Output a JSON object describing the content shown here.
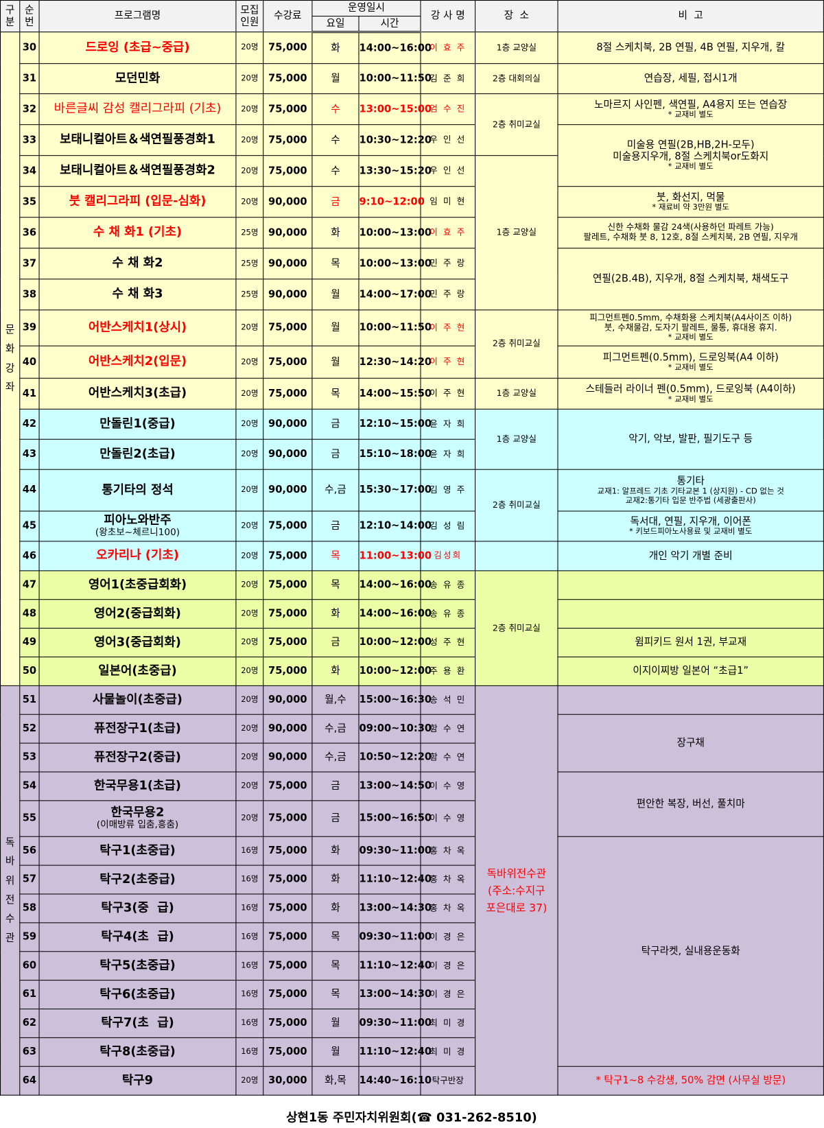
{
  "header": {
    "category": "구\n분",
    "number": "순\n번",
    "program": "프로그램명",
    "capacity": "모집\n인원",
    "fee": "수강료",
    "schedule": "운영일시",
    "day": "요일",
    "time": "시간",
    "instructor": "강 사 명",
    "location": "장  소",
    "note": "비  고"
  },
  "categories": [
    {
      "label": "문\n화\n강\n좌",
      "span": 21,
      "color": "#ffffcc"
    },
    {
      "label": "독\n바\n위\n전\n수\n관",
      "span": 14,
      "color": "#ccc0da"
    }
  ],
  "colors": {
    "yellow": "#ffffcc",
    "cyan": "#ccffff",
    "lime": "#ebfda5",
    "purple": "#ccc0da",
    "red": "#ff0000",
    "header": "#f2f2f2"
  },
  "rows": [
    {
      "no": "30",
      "name": "드로잉 (초급~중급)",
      "red_name": true,
      "cap": "20명",
      "fee": "75,000",
      "day": "화",
      "time": "14:00~16:00",
      "inst": "이 효 주",
      "red_inst": true,
      "loc": "1층 교양실",
      "loc_span": 1,
      "note": "8절 스케치북, 2B 연필, 4B 연필, 지우개, 칼",
      "note_span": 1,
      "bg": "y"
    },
    {
      "no": "31",
      "name": "모던민화",
      "cap": "20명",
      "fee": "75,000",
      "day": "월",
      "time": "10:00~11:50",
      "inst": "김 준 희",
      "loc": "2층 대회의실",
      "loc_span": 1,
      "note": "연습장, 세필, 접시1개",
      "note_span": 1,
      "bg": "y"
    },
    {
      "no": "32",
      "name": "바른글씨 감성 캘리그라피 (기초)",
      "red_name": true,
      "light": true,
      "cap": "20명",
      "fee": "75,000",
      "day": "수",
      "red_time": true,
      "time": "13:00~15:00",
      "inst": "엄 수 진",
      "red_inst": true,
      "loc": "2층 취미교실",
      "loc_span": 2,
      "note": "노마르지 사인펜, 색연필, A4용지 또는 연습장",
      "note_sub": "* 교재비 별도",
      "note_span": 1,
      "bg": "y"
    },
    {
      "no": "33",
      "name": "보태니컬아트＆색연필풍경화1",
      "cap": "20명",
      "fee": "75,000",
      "day": "수",
      "time": "10:30~12:20",
      "inst": "우 인 선",
      "note": "미술용 연필(2B,HB,2H-모두)\n미술용지우개, 8절 스케치북or도화지",
      "note_sub": "* 교재비 별도",
      "note_span": 2,
      "bg": "y"
    },
    {
      "no": "34",
      "name": "보태니컬아트＆색연필풍경화2",
      "cap": "20명",
      "fee": "75,000",
      "day": "수",
      "time": "13:30~15:20",
      "inst": "우 인 선",
      "loc": "1층 교양실",
      "loc_span": 5,
      "bg": "y"
    },
    {
      "no": "35",
      "name": "붓 캘리그라피 (입문-심화)",
      "red_name": true,
      "cap": "20명",
      "fee": "90,000",
      "day": "금",
      "time": "9:10~12:00",
      "red_time": true,
      "inst": "임 미 현",
      "note": "붓, 화선지, 먹물",
      "note_sub": "* 재료비 약 3만원 별도",
      "note_span": 1,
      "bg": "y"
    },
    {
      "no": "36",
      "name": "수 채 화1 (기초)",
      "red_name": true,
      "cap": "25명",
      "fee": "90,000",
      "day": "화",
      "time": "10:00~13:00",
      "inst": "이 효 주",
      "red_inst": true,
      "note": "신한 수채화 물감 24색(사용하던 파레트 가능)\n팔레트, 수채화 붓 8, 12호, 8절 스케치북, 2B 연필, 지우개",
      "small_note": true,
      "note_span": 1,
      "bg": "y"
    },
    {
      "no": "37",
      "name": "수 채 화2",
      "cap": "25명",
      "fee": "90,000",
      "day": "목",
      "time": "10:00~13:00",
      "inst": "민 주 랑",
      "note": "연필(2B.4B), 지우개, 8절 스케치북, 채색도구",
      "note_span": 2,
      "bg": "y"
    },
    {
      "no": "38",
      "name": "수 채 화3",
      "cap": "25명",
      "fee": "90,000",
      "day": "월",
      "time": "14:00~17:00",
      "inst": "민 주 랑",
      "bg": "y"
    },
    {
      "no": "39",
      "name": "어반스케치1(상시)",
      "red_name": true,
      "cap": "20명",
      "fee": "75,000",
      "day": "월",
      "time": "10:00~11:50",
      "inst": "이 주 현",
      "red_inst": true,
      "loc": "2층 취미교실",
      "loc_span": 2,
      "note": "피그먼트펜0.5mm, 수채화용 스케치북(A4사이즈 이하)\n붓, 수채물감, 도자기 팔레트, 물통, 휴대용 휴지.",
      "note_sub": "* 교재비 별도",
      "small_note": true,
      "note_span": 1,
      "bg": "y"
    },
    {
      "no": "40",
      "name": "어반스케치2(입문)",
      "red_name": true,
      "cap": "20명",
      "fee": "75,000",
      "day": "월",
      "time": "12:30~14:20",
      "inst": "이 주 현",
      "red_inst": true,
      "note": "피그먼트펜(0.5mm), 드로잉북(A4 이하)",
      "note_sub": "* 교재비 별도",
      "note_span": 1,
      "bg": "y"
    },
    {
      "no": "41",
      "name": "어반스케치3(초급)",
      "cap": "20명",
      "fee": "75,000",
      "day": "목",
      "time": "14:00~15:50",
      "inst": "이 주 현",
      "loc": "1층 교양실",
      "loc_span": 1,
      "note": "스테들러 라이너 펜(0.5mm), 드로잉북 (A4이하)",
      "note_sub": "* 교재비 별도",
      "note_span": 1,
      "bg": "y"
    },
    {
      "no": "42",
      "name": "만돌린1(중급)",
      "cap": "20명",
      "fee": "90,000",
      "day": "금",
      "time": "12:10~15:00",
      "inst": "윤 자 희",
      "loc": "1층 교양실",
      "loc_span": 2,
      "note": "악기, 악보, 발판, 필기도구 등",
      "note_span": 2,
      "bg": "c"
    },
    {
      "no": "43",
      "name": "만돌린2(초급)",
      "cap": "20명",
      "fee": "90,000",
      "day": "금",
      "time": "15:10~18:00",
      "inst": "윤 자 희",
      "bg": "c"
    },
    {
      "no": "44",
      "name": "통기타의 정석",
      "cap": "20명",
      "fee": "90,000",
      "day": "수,금",
      "time": "15:30~17:00",
      "inst": "김 영 주",
      "loc": "2층 취미교실",
      "loc_span": 2,
      "note": "통기타",
      "note_sub": "교재1: 알프레드 기초 기타교본 1 (상지원) - CD 없는 것\n교재2:통기타 입문 반주법 (세광출판사)",
      "note_span": 1,
      "bg": "c"
    },
    {
      "no": "45",
      "name": "피아노와반주",
      "name_sub": "(왕초보~체르니100)",
      "cap": "20명",
      "fee": "75,000",
      "day": "금",
      "time": "12:10~14:00",
      "inst": "김 성 림",
      "note": "독서대, 연필, 지우개, 이어폰",
      "note_sub": "* 키보드피아노사용료 및 교재비 별도",
      "note_span": 1,
      "bg": "c"
    },
    {
      "no": "46",
      "name": "오카리나 (기초)",
      "red_name": true,
      "cap": "20명",
      "fee": "75,000",
      "day": "목",
      "red_time": true,
      "time": "11:00~13:00",
      "inst": "김성희",
      "red_inst": true,
      "loc": "",
      "loc_span": 1,
      "note": "개인 악기 개별 준비",
      "note_span": 1,
      "bg": "c"
    },
    {
      "no": "47",
      "name": "영어1(초중급회화)",
      "cap": "20명",
      "fee": "75,000",
      "day": "목",
      "time": "14:00~16:00",
      "inst": "송 유 종",
      "loc": "2층 취미교실",
      "loc_span": 4,
      "note": "",
      "note_span": 1,
      "bg": "g"
    },
    {
      "no": "48",
      "name": "영어2(중급회화)",
      "cap": "20명",
      "fee": "75,000",
      "day": "화",
      "time": "14:00~16:00",
      "inst": "송 유 종",
      "note": "",
      "note_span": 1,
      "bg": "g"
    },
    {
      "no": "49",
      "name": "영어3(중급회화)",
      "cap": "20명",
      "fee": "75,000",
      "day": "금",
      "time": "10:00~12:00",
      "inst": "성 주 현",
      "note": "윔피키드 원서 1권, 부교재",
      "note_span": 1,
      "bg": "g"
    },
    {
      "no": "50",
      "name": "일본어(초중급)",
      "cap": "20명",
      "fee": "75,000",
      "day": "화",
      "time": "10:00~12:00",
      "inst": "주 용 환",
      "note": "이지이찌방 일본어  “초급1”",
      "note_span": 1,
      "bg": "g"
    },
    {
      "no": "51",
      "name": "사물놀이(초중급)",
      "cap": "20명",
      "fee": "90,000",
      "day": "월,수",
      "time": "15:00~16:30",
      "inst": "송 석 민",
      "loc": "독바위전수관\n(주소:수지구\n포은대로 37)",
      "red_loc": true,
      "loc_span": 14,
      "note": "",
      "note_span": 1,
      "bg": "p"
    },
    {
      "no": "52",
      "name": "퓨전장구1(초급)",
      "cap": "20명",
      "fee": "90,000",
      "day": "수,금",
      "time": "09:00~10:30",
      "inst": "함 수 연",
      "note": "장구채",
      "note_span": 2,
      "bg": "p"
    },
    {
      "no": "53",
      "name": "퓨전장구2(중급)",
      "cap": "20명",
      "fee": "90,000",
      "day": "수,금",
      "time": "10:50~12:20",
      "inst": "함 수 연",
      "bg": "p"
    },
    {
      "no": "54",
      "name": "한국무용1(초급)",
      "cap": "20명",
      "fee": "75,000",
      "day": "금",
      "time": "13:00~14:50",
      "inst": "이 수 영",
      "note": "편안한 복장, 버선, 풀치마",
      "note_span": 2,
      "bg": "p"
    },
    {
      "no": "55",
      "name": "한국무용2",
      "name_sub": "(이매방류 입춤,흥춤)",
      "cap": "20명",
      "fee": "75,000",
      "day": "금",
      "time": "15:00~16:50",
      "inst": "이 수 영",
      "bg": "p"
    },
    {
      "no": "56",
      "name": "탁구1(초중급)",
      "cap": "16명",
      "fee": "75,000",
      "day": "화",
      "time": "09:30~11:00",
      "inst": "홍 차 옥",
      "note": "탁구라켓, 실내용운동화",
      "note_span": 8,
      "bg": "p"
    },
    {
      "no": "57",
      "name": "탁구2(초중급)",
      "cap": "16명",
      "fee": "75,000",
      "day": "화",
      "time": "11:10~12:40",
      "inst": "홍 차 옥",
      "bg": "p"
    },
    {
      "no": "58",
      "name": "탁구3(중  급)",
      "cap": "16명",
      "fee": "75,000",
      "day": "화",
      "time": "13:00~14:30",
      "inst": "홍 차 옥",
      "bg": "p"
    },
    {
      "no": "59",
      "name": "탁구4(초  급)",
      "cap": "16명",
      "fee": "75,000",
      "day": "목",
      "time": "09:30~11:00",
      "inst": "이 경 은",
      "bg": "p"
    },
    {
      "no": "60",
      "name": "탁구5(초중급)",
      "cap": "16명",
      "fee": "75,000",
      "day": "목",
      "time": "11:10~12:40",
      "inst": "이 경 은",
      "bg": "p"
    },
    {
      "no": "61",
      "name": "탁구6(초중급)",
      "cap": "16명",
      "fee": "75,000",
      "day": "목",
      "time": "13:00~14:30",
      "inst": "이 경 은",
      "bg": "p"
    },
    {
      "no": "62",
      "name": "탁구7(초  급)",
      "cap": "16명",
      "fee": "75,000",
      "day": "월",
      "time": "09:30~11:00",
      "inst": "최 미 경",
      "bg": "p"
    },
    {
      "no": "63",
      "name": "탁구8(초중급)",
      "cap": "16명",
      "fee": "75,000",
      "day": "월",
      "time": "11:10~12:40",
      "inst": "최 미 경",
      "bg": "p"
    },
    {
      "no": "64",
      "name": "탁구9",
      "cap": "20명",
      "fee": "30,000",
      "day": "화,목",
      "time": "14:40~16:10",
      "inst": "탁구반장",
      "inst_plain": true,
      "note": "* 탁구1~8 수강생,  50% 감면  (사무실 방문)",
      "red_note": true,
      "note_span": 1,
      "bg": "p"
    }
  ],
  "footer": {
    "text": "상현1동 주민자치위원회(☎ 031-262-8510)",
    "icon": "phone-icon"
  }
}
